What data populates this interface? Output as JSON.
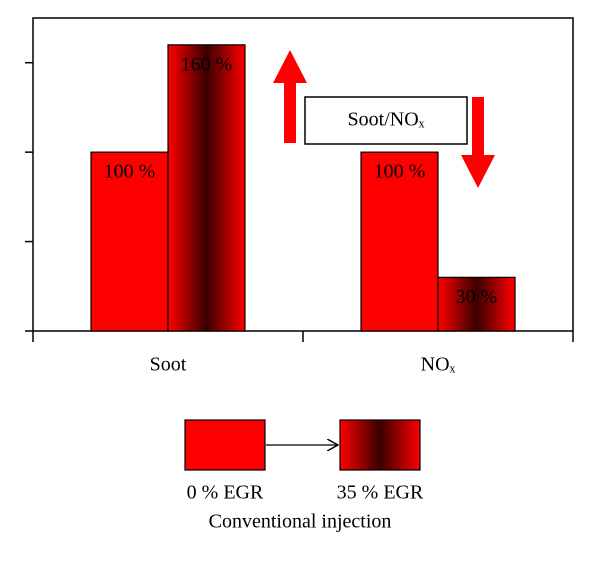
{
  "chart_data": {
    "type": "bar",
    "categories": [
      "Soot",
      "NOₓ"
    ],
    "series": [
      {
        "name": "0 % EGR",
        "color": "#ff0000",
        "values": [
          100,
          100
        ],
        "value_labels": [
          "100 %",
          "100 %"
        ]
      },
      {
        "name": "35 % EGR",
        "color": "#ff0000",
        "values": [
          160,
          30
        ],
        "value_labels": [
          "160 %",
          "30 %"
        ]
      }
    ],
    "ylim": [
      0,
      175
    ],
    "yticks": [
      0,
      50,
      100,
      150
    ],
    "annotation": "Soot/NOₓ",
    "legend_caption": "Conventional injection"
  }
}
